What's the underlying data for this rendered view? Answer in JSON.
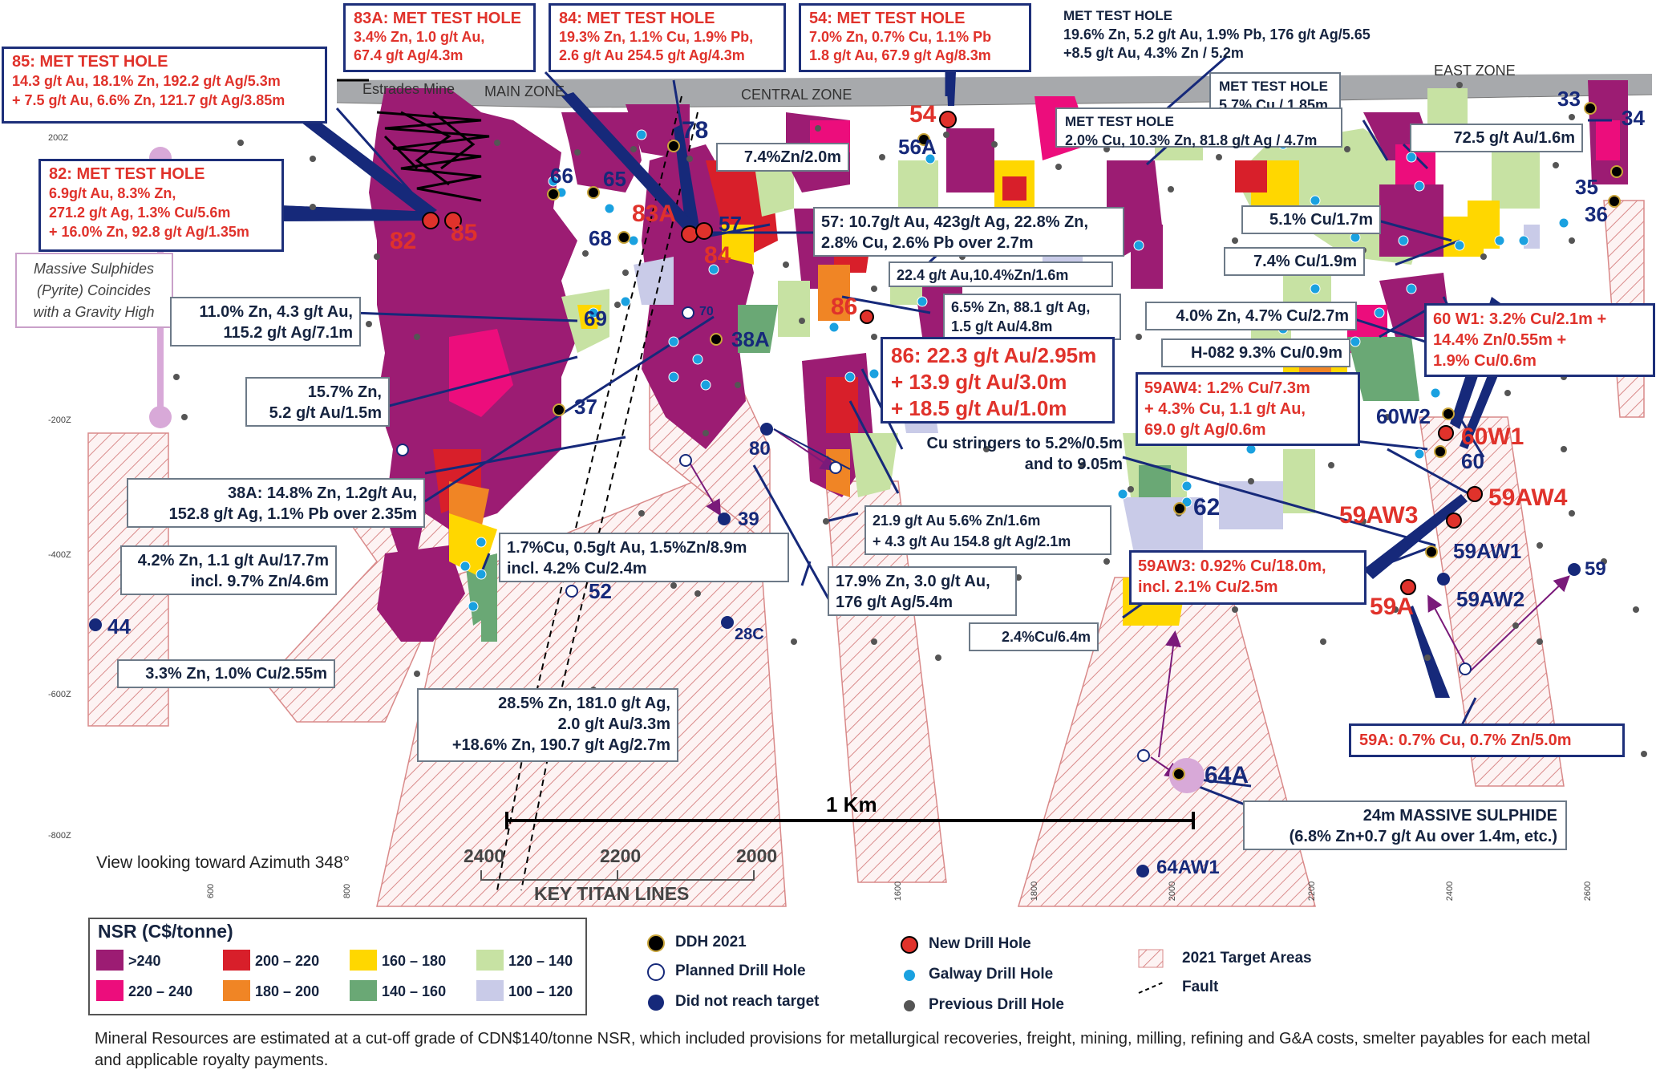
{
  "zones": {
    "mine": "Estrades Mine",
    "main": "MAIN ZONE",
    "central": "CENTRAL ZONE",
    "east": "EAST ZONE"
  },
  "depth_labels": [
    "200Z",
    "-200Z",
    "-400Z",
    "-600Z",
    "-800Z"
  ],
  "easting_labels": [
    "600",
    "800",
    "1600",
    "1800",
    "2000",
    "2200",
    "2400",
    "2600"
  ],
  "view_note": "View looking toward Azimuth 348°",
  "titan": {
    "values": [
      "2400",
      "2200",
      "2000"
    ],
    "label": "KEY TITAN LINES"
  },
  "scale_label": "1 Km",
  "gravity_note": "Massive Sulphides\n(Pyrite) Coincides\nwith a Gravity High",
  "met_boxes": [
    {
      "id": "85",
      "title": "85: MET TEST HOLE",
      "lines": [
        "14.3 g/t Au, 18.1% Zn, 192.2 g/t Ag/5.3m",
        "+ 7.5 g/t Au, 6.6% Zn, 121.7 g/t Ag/3.85m"
      ]
    },
    {
      "id": "83A",
      "title": "83A: MET TEST HOLE",
      "lines": [
        "3.4% Zn, 1.0 g/t Au,",
        "67.4 g/t Ag/4.3m"
      ]
    },
    {
      "id": "84",
      "title": "84: MET TEST HOLE",
      "lines": [
        "19.3% Zn, 1.1% Cu, 1.9% Pb,",
        "2.6 g/t Au 254.5 g/t Ag/4.3m"
      ]
    },
    {
      "id": "54",
      "title": "54: MET TEST HOLE",
      "lines": [
        "7.0% Zn, 0.7% Cu, 1.1% Pb",
        "1.8 g/t Au, 67.9 g/t Ag/8.3m"
      ]
    },
    {
      "id": "82",
      "title": "82: MET TEST HOLE",
      "lines": [
        "6.9g/t Au, 8.3% Zn,",
        "271.2 g/t Ag, 1.3% Cu/5.6m",
        "+ 16.0% Zn, 92.8 g/t Ag/1.35m"
      ]
    }
  ],
  "grey_met": [
    {
      "title": "MET TEST HOLE",
      "lines": [
        "19.6% Zn, 5.2 g/t Au, 1.9% Pb, 176 g/t Ag/5.65",
        "+8.5 g/t Au, 4.3% Zn / 5.2m"
      ]
    },
    {
      "title": "MET TEST HOLE",
      "lines": [
        "5.7% Cu / 1.85m"
      ]
    },
    {
      "title": "MET TEST HOLE",
      "lines": [
        "2.0% Cu, 10.3% Zn, 81.8 g/t Ag / 4.7m"
      ]
    }
  ],
  "assays": {
    "a78": "7.4%Zn/2.0m",
    "a57": [
      "57: 10.7g/t Au, 423g/t Ag, 22.8% Zn,",
      "2.8% Cu, 2.6% Pb over 2.7m"
    ],
    "a224": "22.4 g/t Au,10.4%Zn/1.6m",
    "a65": [
      "6.5% Zn, 88.1 g/t Ag,",
      "1.5 g/t Au/4.8m"
    ],
    "a110": [
      "11.0% Zn, 4.3 g/t Au,",
      "115.2 g/t Ag/7.1m"
    ],
    "a157": [
      "15.7% Zn,",
      "5.2 g/t Au/1.5m"
    ],
    "a38A": [
      "38A: 14.8% Zn, 1.2g/t Au,",
      "152.8 g/t Ag, 1.1% Pb over 2.35m"
    ],
    "a42": [
      "4.2% Zn, 1.1 g/t Au/17.7m",
      "incl. 9.7% Zn/4.6m"
    ],
    "a17": [
      "1.7%Cu, 0.5g/t Au, 1.5%Zn/8.9m",
      "incl. 4.2% Cu/2.4m"
    ],
    "a33": "3.3% Zn, 1.0% Cu/2.55m",
    "a285": [
      "28.5% Zn, 181.0 g/t Ag,",
      "2.0 g/t Au/3.3m",
      "+18.6% Zn, 190.7 g/t Ag/2.7m"
    ],
    "a179": [
      "17.9% Zn, 3.0 g/t Au,",
      "176 g/t Ag/5.4m"
    ],
    "a219": [
      "21.9 g/t Au 5.6% Zn/1.6m",
      "+ 4.3 g/t Au 154.8 g/t Ag/2.1m"
    ],
    "a86": [
      "86: 22.3 g/t Au/2.95m",
      "+ 13.9 g/t Au/3.0m",
      "+ 18.5 g/t Au/1.0m"
    ],
    "acu": [
      "Cu stringers to 5.2%/0.5m",
      "and to 9.05m"
    ],
    "a24": "2.4%Cu/6.4m",
    "a59AW3": [
      "59AW3: 0.92% Cu/18.0m,",
      "incl. 2.1% Cu/2.5m"
    ],
    "a59AW4": [
      "59AW4: 1.2% Cu/7.3m",
      "+ 4.3% Cu, 1.1 g/t Au,",
      "69.0 g/t Ag/0.6m"
    ],
    "a60W1": [
      "60 W1: 3.2% Cu/2.1m +",
      "14.4% Zn/0.55m +",
      "1.9% Cu/0.6m"
    ],
    "a59A": "59A: 0.7% Cu, 0.7% Zn/5.0m",
    "a725": "72.5 g/t Au/1.6m",
    "a51": "5.1% Cu/1.7m",
    "a74": "7.4% Cu/1.9m",
    "a40": "4.0% Zn, 4.7% Cu/2.7m",
    "aH082": "H-082 9.3% Cu/0.9m",
    "a64A": [
      "24m MASSIVE SULPHIDE",
      "(6.8% Zn+0.7 g/t Au over 1.4m, etc.)"
    ]
  },
  "hole_labels": {
    "h82": "82",
    "h85": "85",
    "h83A": "83A",
    "h57": "57",
    "h84": "84",
    "h54": "54",
    "h78": "78",
    "h56A": "56A",
    "h66": "66",
    "h65": "65",
    "h68": "68",
    "h70": "70",
    "h69": "69",
    "h38A": "38A",
    "h37": "37",
    "h86": "86",
    "h80": "80",
    "h39": "39",
    "h52": "52",
    "h28C": "28C",
    "h44": "44",
    "h62": "62",
    "h60W2": "60W2",
    "h60W1": "60W1",
    "h60": "60",
    "h59AW4": "59AW4",
    "h59AW3": "59AW3",
    "h59AW1": "59AW1",
    "h59AW2": "59AW2",
    "h59": "59",
    "h59A": "59A",
    "h33": "33",
    "h34": "34",
    "h35": "35",
    "h36": "36",
    "h64A": "64A",
    "h64AW1": "64AW1"
  },
  "legend": {
    "title": "NSR (C$/tonne)",
    "classes": [
      {
        "label": ">240",
        "color": "#9c1c73"
      },
      {
        "label": "220 – 240",
        "color": "#ec0d7c"
      },
      {
        "label": "200 – 220",
        "color": "#d81f2a"
      },
      {
        "label": "180 – 200",
        "color": "#f08525"
      },
      {
        "label": "160 – 180",
        "color": "#ffd700"
      },
      {
        "label": "140 – 160",
        "color": "#6aa875"
      },
      {
        "label": "120 – 140",
        "color": "#c7e2a3"
      },
      {
        "label": "100 – 120",
        "color": "#c9cbe8"
      }
    ],
    "holes": [
      {
        "label": "DDH 2021",
        "icon": "ddh-2021-icon"
      },
      {
        "label": "Planned Drill Hole",
        "icon": "planned-hole-icon"
      },
      {
        "label": "Did not reach target",
        "icon": "not-reached-icon"
      },
      {
        "label": "New Drill Hole",
        "icon": "new-hole-icon"
      },
      {
        "label": "Galway Drill Hole",
        "icon": "galway-hole-icon"
      },
      {
        "label": "Previous Drill Hole",
        "icon": "previous-hole-icon"
      },
      {
        "label": "2021 Target Areas",
        "icon": "target-area-icon"
      },
      {
        "label": "Fault",
        "icon": "fault-icon"
      }
    ]
  },
  "footnote": "Mineral Resources are estimated at a cut-off grade of CDN$140/tonne NSR, which included provisions for metallurgical recoveries, freight, mining, milling, refining and G&A costs, smelter payables for each metal and applicable royalty payments.",
  "colors": {
    "accent_red": "#e0322b",
    "navy": "#1d2f7a",
    "hatch": "#e3a1a1"
  }
}
